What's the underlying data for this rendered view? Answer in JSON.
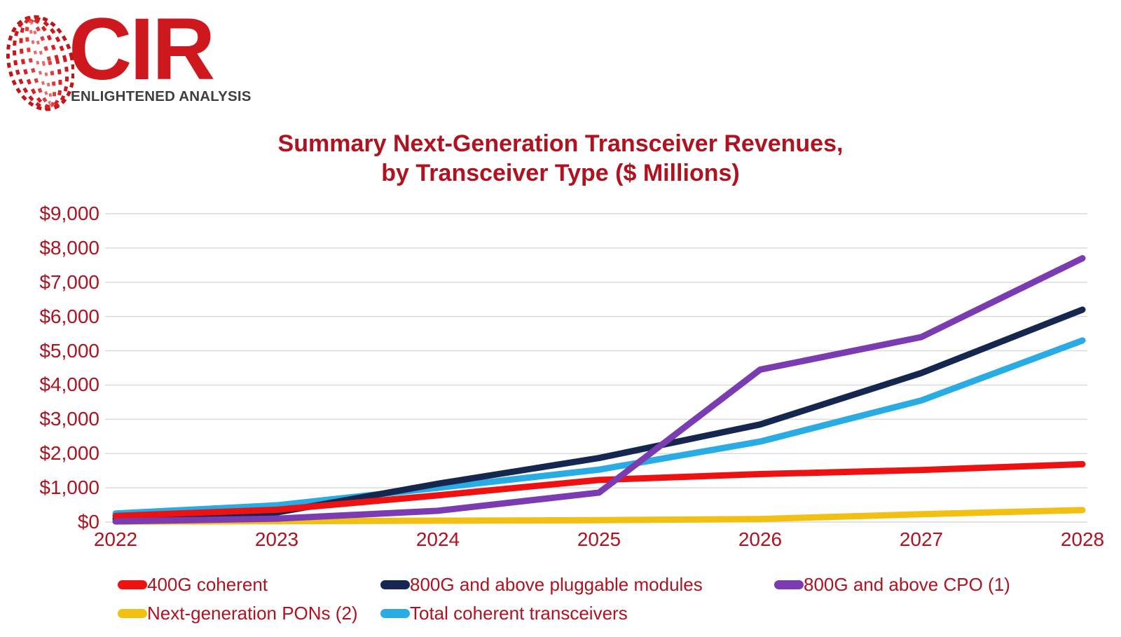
{
  "logo": {
    "brand": "CIR",
    "tagline": "ENLIGHTENED ANALYSIS",
    "brand_color": "#CE181E",
    "tagline_color": "#3F3F3F"
  },
  "title": {
    "line1": "Summary Next-Generation Transceiver Revenues,",
    "line2": "by Transceiver Type ($ Millions)",
    "color": "#B0121F"
  },
  "chart_data": {
    "type": "line",
    "title": "Summary Next-Generation Transceiver Revenues, by Transceiver Type ($ Millions)",
    "x": [
      2022,
      2023,
      2024,
      2025,
      2026,
      2027,
      2028
    ],
    "x_tick_labels": [
      "2022",
      "2023",
      "2024",
      "2025",
      "2026",
      "2027",
      "2028"
    ],
    "y_tick_labels": [
      "$9,000",
      "$8,000",
      "$7,000",
      "$6,000",
      "$5,000",
      "$4,000",
      "$3,000",
      "$2,000",
      "$1,000",
      "$0"
    ],
    "ylim": [
      0,
      9000
    ],
    "y_tick_step": 1000,
    "grid": "horizontal-only",
    "gridline_color": "#DCDCDC",
    "axis_label_color": "#B0121F",
    "legend_position": "bottom",
    "series": [
      {
        "name": "Next-generation PONs (2)",
        "color": "#F2C012",
        "values": [
          15,
          25,
          40,
          55,
          90,
          230,
          350
        ]
      },
      {
        "name": "Total coherent transceivers",
        "color": "#29ABE3",
        "values": [
          250,
          490,
          1000,
          1530,
          2350,
          3550,
          5300
        ]
      },
      {
        "name": "800G and above pluggable modules",
        "color": "#15274E",
        "values": [
          90,
          280,
          1120,
          1870,
          2850,
          4350,
          6200
        ]
      },
      {
        "name": "400G coherent",
        "color": "#EE1111",
        "values": [
          180,
          360,
          780,
          1230,
          1400,
          1520,
          1690
        ]
      },
      {
        "name": "800G and above CPO (1)",
        "color": "#7B3CB1",
        "values": [
          20,
          100,
          330,
          860,
          4450,
          5400,
          7700
        ]
      }
    ],
    "legend_rows": [
      [
        "400G coherent",
        "800G and above pluggable modules",
        "800G and above CPO (1)"
      ],
      [
        "Next-generation PONs (2)",
        "Total coherent transceivers"
      ]
    ]
  }
}
